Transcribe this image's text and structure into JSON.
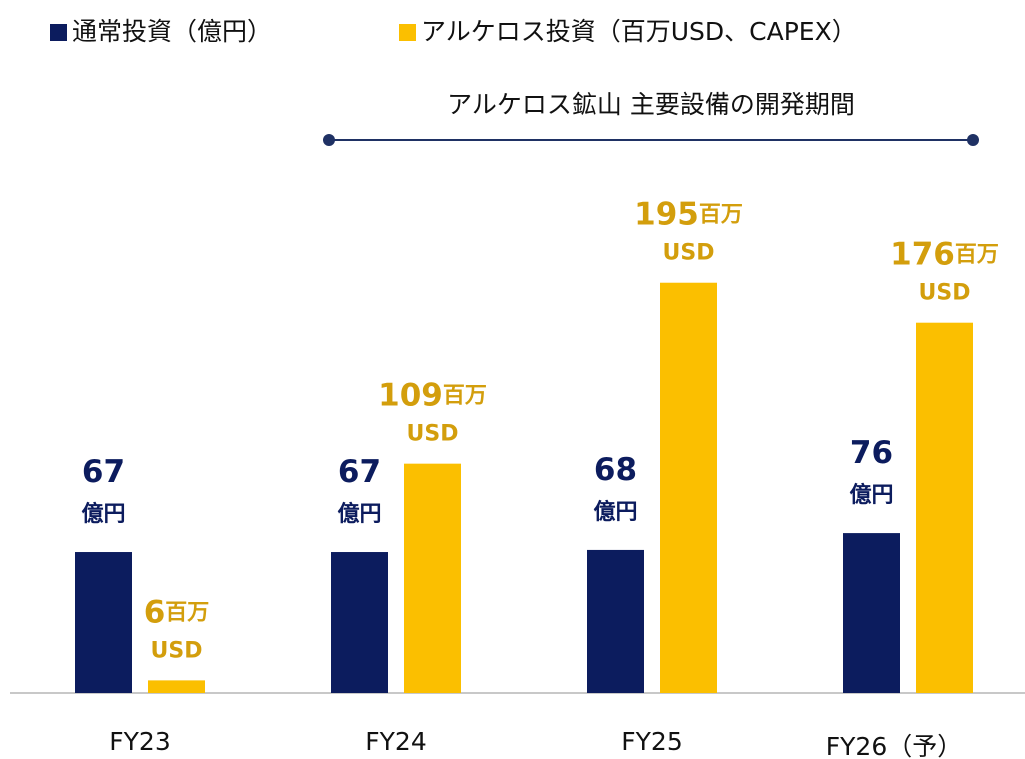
{
  "chart_data": {
    "type": "bar",
    "categories": [
      "FY23",
      "FY24",
      "FY25",
      "FY26（予）"
    ],
    "series": [
      {
        "name": "通常投資（億円）",
        "color": "#0c1c5e",
        "label_color": "#0c1c5e",
        "units": [
          "億円"
        ],
        "values": [
          67,
          67,
          68,
          76
        ]
      },
      {
        "name": "アルケロス投資（百万USD、CAPEX）",
        "color": "#fbbf00",
        "label_color": "#d39e0c",
        "units": [
          "百万",
          "USD"
        ],
        "values": [
          6,
          109,
          195,
          176
        ]
      }
    ],
    "annotation": "アルケロス鉱山 主要設備の開発期間",
    "ylim": [
      0,
      250
    ]
  }
}
